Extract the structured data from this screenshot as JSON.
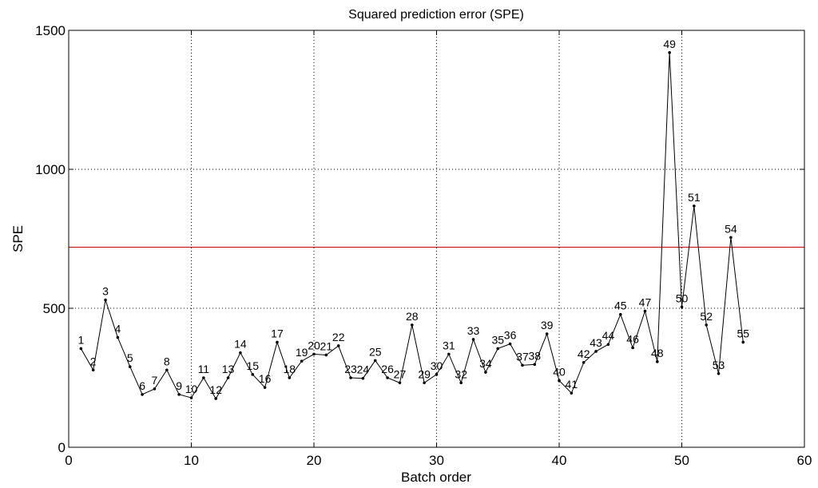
{
  "chart_data": {
    "type": "line",
    "title": "Squared prediction error (SPE)",
    "xlabel": "Batch order",
    "ylabel": "SPE",
    "xlim": [
      0,
      60
    ],
    "ylim": [
      0,
      1500
    ],
    "xticks": [
      0,
      10,
      20,
      30,
      40,
      50,
      60
    ],
    "yticks": [
      0,
      500,
      1000,
      1500
    ],
    "grid": true,
    "colors": {
      "series": "#000000",
      "limit": "#cc0000"
    },
    "limit_line": {
      "y": 720
    },
    "series": [
      {
        "x": [
          1,
          2,
          3,
          4,
          5,
          6,
          7,
          8,
          9,
          10,
          11,
          12,
          13,
          14,
          15,
          16,
          17,
          18,
          19,
          20,
          21,
          22,
          23,
          24,
          25,
          26,
          27,
          28,
          29,
          30,
          31,
          32,
          33,
          34,
          35,
          36,
          37,
          38,
          39,
          40,
          41,
          42,
          43,
          44,
          45,
          46,
          47,
          48,
          49,
          50,
          51,
          52,
          53,
          54,
          55
        ],
        "values": [
          355,
          278,
          530,
          395,
          290,
          190,
          210,
          278,
          190,
          178,
          250,
          175,
          250,
          340,
          262,
          215,
          378,
          250,
          310,
          335,
          332,
          365,
          250,
          248,
          312,
          250,
          232,
          440,
          232,
          262,
          335,
          232,
          388,
          270,
          355,
          372,
          295,
          298,
          408,
          240,
          195,
          305,
          345,
          370,
          478,
          358,
          490,
          308,
          1420,
          505,
          868,
          440,
          265,
          755,
          378
        ],
        "labels": [
          "1",
          "2",
          "3",
          "4",
          "5",
          "6",
          "7",
          "8",
          "9",
          "10",
          "11",
          "12",
          "13",
          "14",
          "15",
          "16",
          "17",
          "18",
          "19",
          "20",
          "21",
          "22",
          "23",
          "24",
          "25",
          "26",
          "27",
          "28",
          "29",
          "30",
          "31",
          "32",
          "33",
          "34",
          "35",
          "36",
          "37",
          "38",
          "39",
          "40",
          "41",
          "42",
          "43",
          "44",
          "45",
          "46",
          "47",
          "48",
          "49",
          "50",
          "51",
          "52",
          "53",
          "54",
          "55"
        ]
      }
    ]
  }
}
